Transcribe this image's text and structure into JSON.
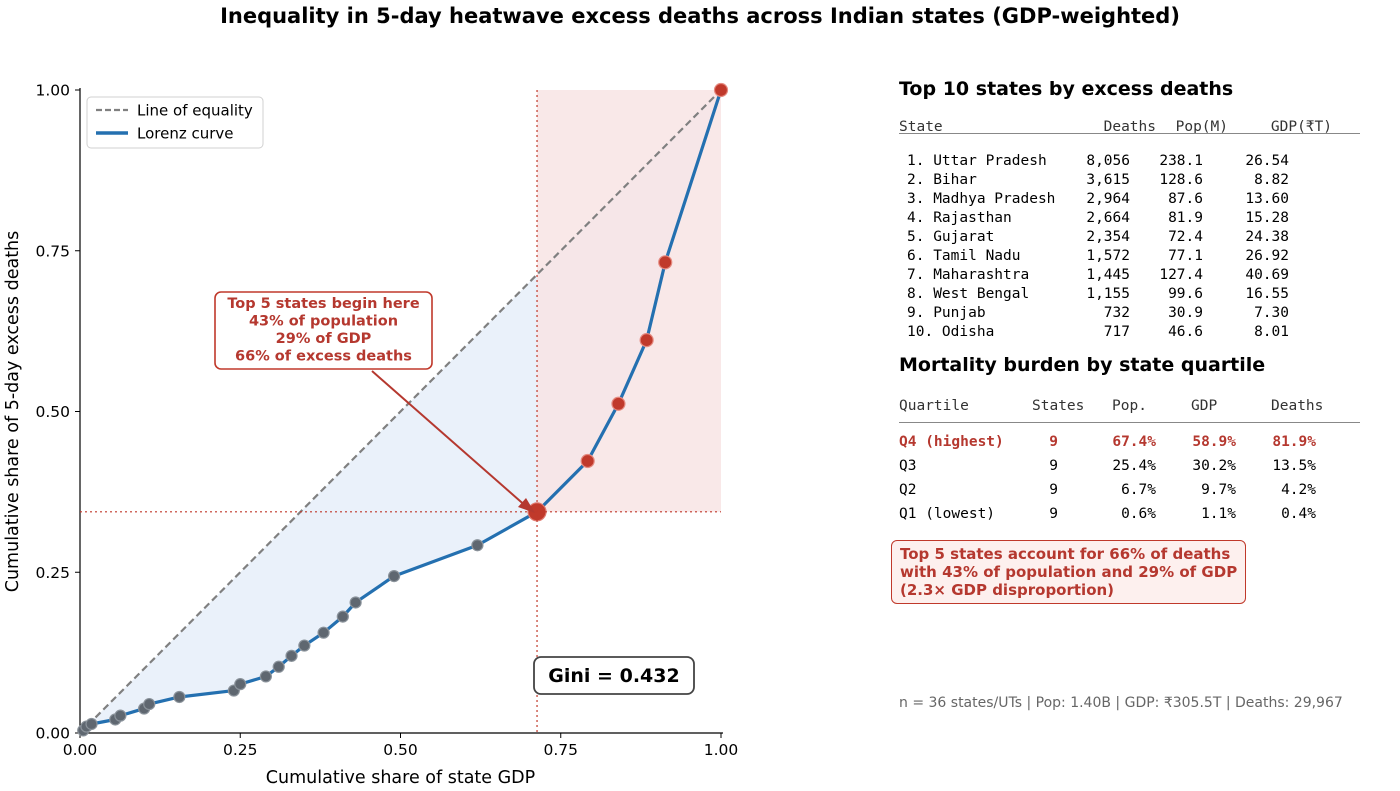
{
  "title": "Inequality in 5-day heatwave excess deaths across Indian states (GDP-weighted)",
  "chart_data": {
    "type": "line",
    "xlabel": "Cumulative share of state GDP",
    "ylabel": "Cumulative share of 5-day excess deaths",
    "xlim": [
      0,
      1
    ],
    "ylim": [
      0,
      1
    ],
    "xticks": [
      "0.00",
      "0.25",
      "0.50",
      "0.75",
      "1.00"
    ],
    "yticks": [
      "0.00",
      "0.25",
      "0.50",
      "0.75",
      "1.00"
    ],
    "legend": {
      "placement": "top-left",
      "entries": [
        "Line of equality",
        "Lorenz curve"
      ]
    },
    "series": [
      {
        "name": "Line of equality",
        "style": "dashed",
        "color": "#808080",
        "x": [
          0,
          1
        ],
        "y": [
          0,
          1
        ]
      },
      {
        "name": "Lorenz curve",
        "color": "#2470b0",
        "x": [
          0,
          0.005,
          0.01,
          0.018,
          0.055,
          0.063,
          0.1,
          0.108,
          0.155,
          0.24,
          0.25,
          0.29,
          0.31,
          0.33,
          0.35,
          0.38,
          0.41,
          0.43,
          0.49,
          0.62,
          0.713,
          0.792,
          0.84,
          0.884,
          0.913,
          1.0
        ],
        "y": [
          0,
          0.004,
          0.01,
          0.014,
          0.021,
          0.027,
          0.038,
          0.045,
          0.056,
          0.066,
          0.076,
          0.088,
          0.103,
          0.12,
          0.136,
          0.156,
          0.181,
          0.203,
          0.244,
          0.292,
          0.344,
          0.423,
          0.512,
          0.611,
          0.732,
          1.0
        ],
        "top_states_start_index": 20
      }
    ],
    "annotations": {
      "arrow_box": [
        "Top 5 states begin here",
        "43% of population",
        "29% of GDP",
        "66% of excess deaths"
      ],
      "gini": "Gini = 0.432",
      "reference_point": {
        "x": 0.713,
        "y": 0.344
      }
    }
  },
  "top10": {
    "title": "Top 10 states by excess deaths",
    "headers": [
      "State",
      "Deaths",
      "Pop(M)",
      "GDP(₹T)"
    ],
    "rows": [
      [
        "1. Uttar Pradesh",
        "8,056",
        "238.1",
        "26.54"
      ],
      [
        "2. Bihar",
        "3,615",
        "128.6",
        "8.82"
      ],
      [
        "3. Madhya Pradesh",
        "2,964",
        "87.6",
        "13.60"
      ],
      [
        "4. Rajasthan",
        "2,664",
        "81.9",
        "15.28"
      ],
      [
        "5. Gujarat",
        "2,354",
        "72.4",
        "24.38"
      ],
      [
        "6. Tamil Nadu",
        "1,572",
        "77.1",
        "26.92"
      ],
      [
        "7. Maharashtra",
        "1,445",
        "127.4",
        "40.69"
      ],
      [
        "8. West Bengal",
        "1,155",
        "99.6",
        "16.55"
      ],
      [
        "9. Punjab",
        "732",
        "30.9",
        "7.30"
      ],
      [
        "10. Odisha",
        "717",
        "46.6",
        "8.01"
      ]
    ]
  },
  "quartiles": {
    "title": "Mortality burden by state quartile",
    "headers": [
      "Quartile",
      "States",
      "Pop.",
      "GDP",
      "Deaths"
    ],
    "rows": [
      [
        "Q4 (highest)",
        "9",
        "67.4%",
        "58.9%",
        "81.9%"
      ],
      [
        "Q3",
        "9",
        "25.4%",
        "30.2%",
        "13.5%"
      ],
      [
        "Q2",
        "9",
        "6.7%",
        "9.7%",
        "4.2%"
      ],
      [
        "Q1 (lowest)",
        "9",
        "0.6%",
        "1.1%",
        "0.4%"
      ]
    ]
  },
  "callout": [
    "Top 5 states account for 66% of deaths",
    "with 43% of population and 29% of GDP",
    "(2.3× GDP disproportion)"
  ],
  "footer": "n = 36 states/UTs  |  Pop: 1.40B  |  GDP: ₹305.5T  |  Deaths: 29,967",
  "colors": {
    "lorenz": "#2470b0",
    "equality": "#808080",
    "highlight": "#c0392b",
    "below_fill": "#eaf1fa",
    "top_fill": "#f8e4e4"
  }
}
